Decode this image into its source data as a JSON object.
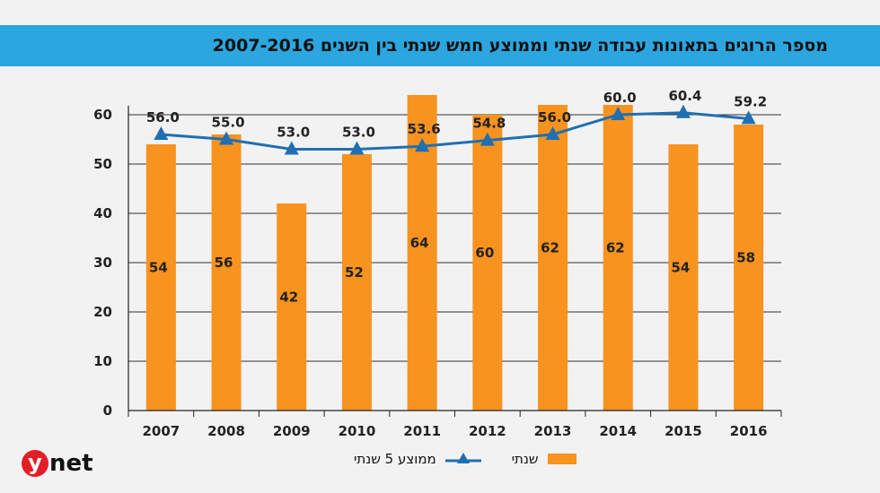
{
  "chart_data": {
    "type": "bar",
    "title": "מספר הרוגים בתאונות עבודה שנתי וממוצע חמש שנתי בין השנים 2007-2016",
    "categories": [
      "2007",
      "2008",
      "2009",
      "2010",
      "2011",
      "2012",
      "2013",
      "2014",
      "2015",
      "2016"
    ],
    "series": [
      {
        "name": "שנתי",
        "type": "bar",
        "color": "#f7931e",
        "values": [
          54,
          56,
          42,
          52,
          64,
          60,
          62,
          62,
          54,
          58
        ],
        "labels": [
          "54",
          "56",
          "42",
          "52",
          "64",
          "60",
          "62",
          "62",
          "54",
          "58"
        ]
      },
      {
        "name": "ממוצע 5 שנתי",
        "type": "line",
        "color": "#1f6fb2",
        "values": [
          56.0,
          55.0,
          53.0,
          53.0,
          53.6,
          54.8,
          56.0,
          60.0,
          60.4,
          59.2
        ],
        "labels": [
          "56.0",
          "55.0",
          "53.0",
          "53.0",
          "53.6",
          "54.8",
          "56.0",
          "60.0",
          "60.4",
          "59.2"
        ]
      }
    ],
    "ylim": [
      0,
      60
    ],
    "yticks": [
      "0",
      "10",
      "20",
      "30",
      "40",
      "50",
      "60"
    ],
    "xlabel": "",
    "ylabel": "",
    "grid": true,
    "legend_position": "bottom"
  },
  "logo": {
    "y": "y",
    "rest": "net"
  }
}
